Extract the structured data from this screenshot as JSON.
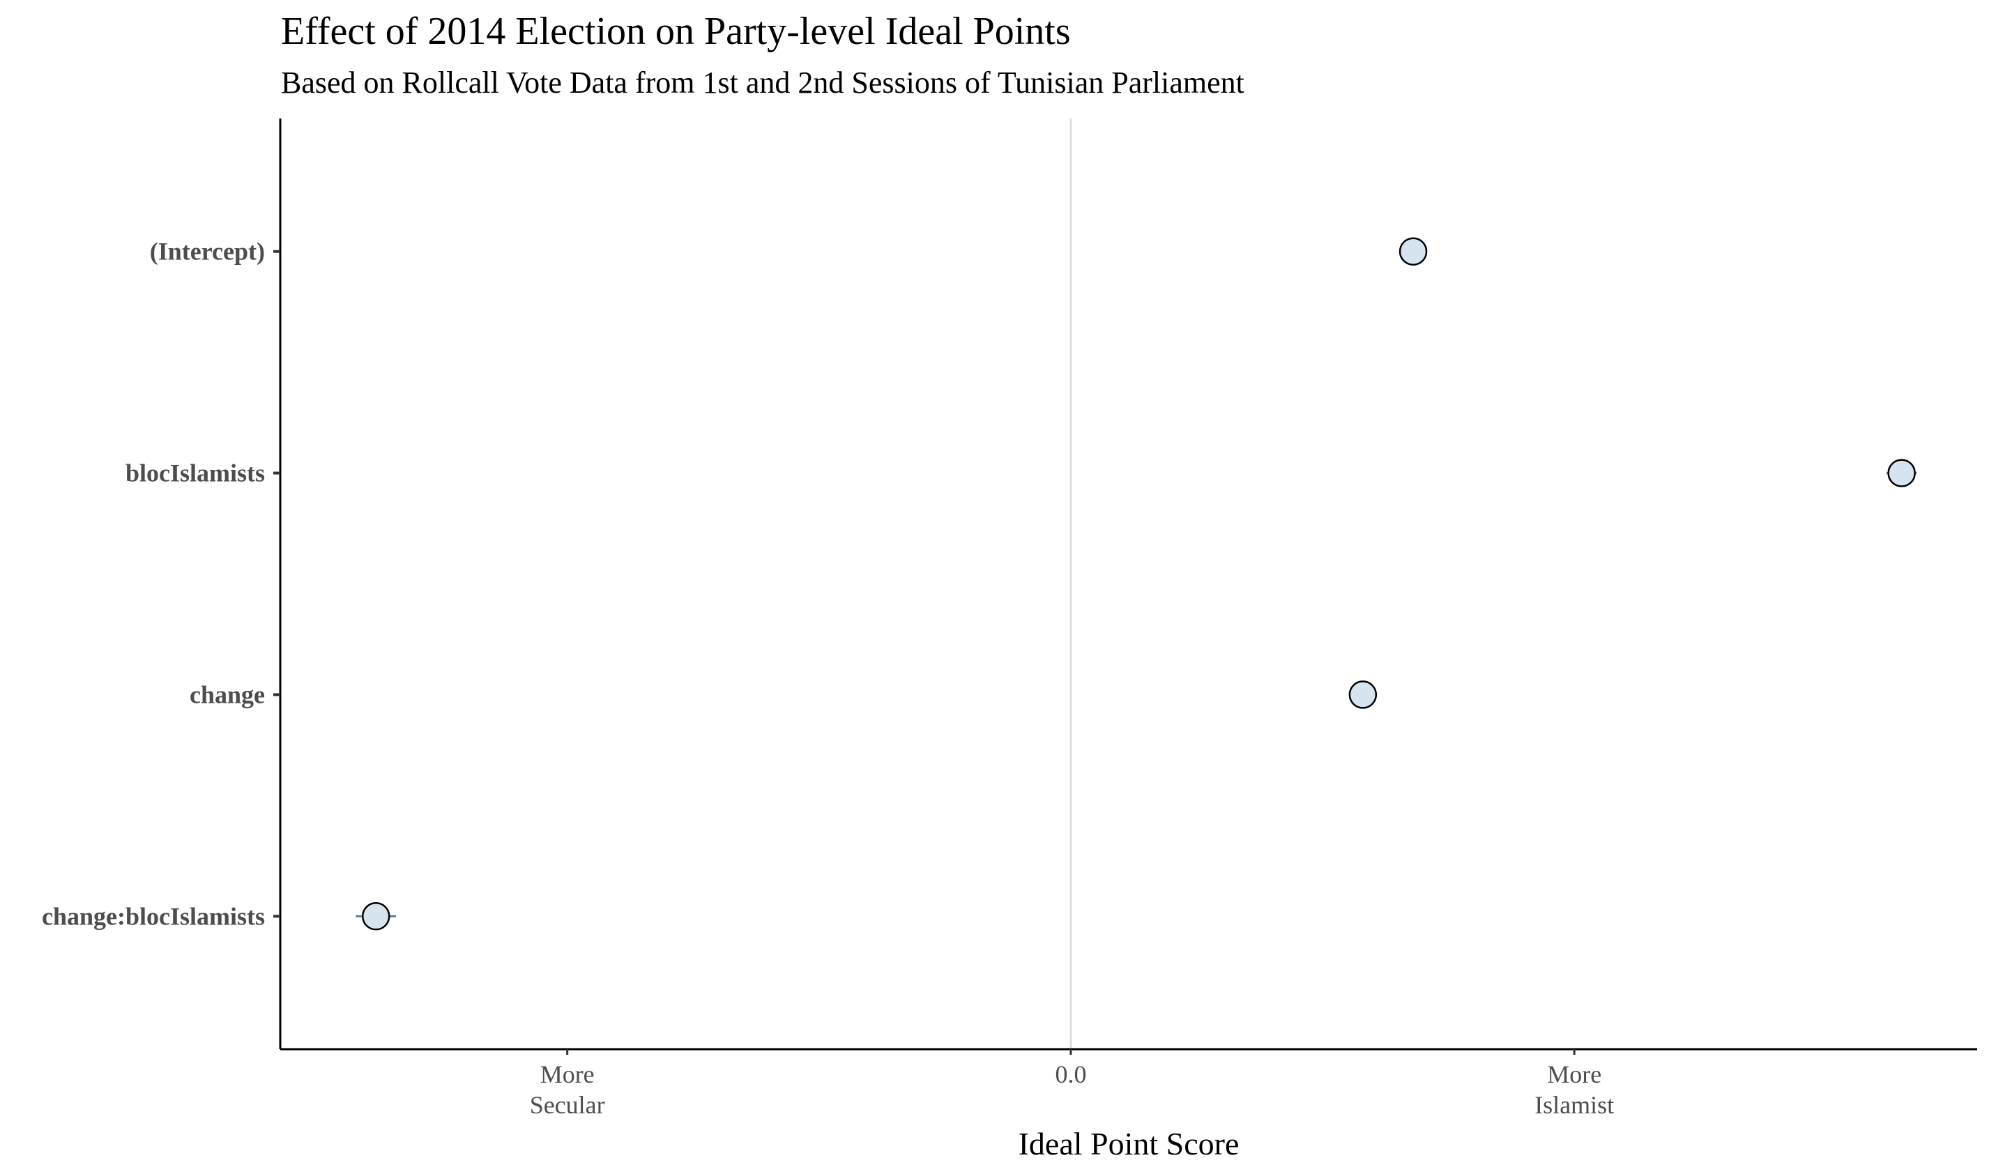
{
  "chart_data": {
    "type": "scatter",
    "title": "Effect of 2014 Election on Party-level Ideal Points",
    "subtitle": "Based on Rollcall Vote Data from 1st and 2nd Sessions of Tunisian Parliament",
    "xlabel": "Ideal Point Score",
    "ylabel": "",
    "xlim": [
      -1.57,
      1.8
    ],
    "x_ticks": [
      {
        "value": -1.0,
        "lines": [
          "More",
          "Secular"
        ]
      },
      {
        "value": 0.0,
        "lines": [
          "0.0"
        ]
      },
      {
        "value": 1.0,
        "lines": [
          "More",
          "Islamist"
        ]
      }
    ],
    "reference_line": 0.0,
    "categories": [
      "(Intercept)",
      "blocIslamists",
      "change",
      "change:blocIslamists"
    ],
    "points": [
      {
        "label": "(Intercept)",
        "x": 0.68,
        "ci": [
          0.66,
          0.7
        ]
      },
      {
        "label": "blocIslamists",
        "x": 1.65,
        "ci": [
          1.62,
          1.68
        ]
      },
      {
        "label": "change",
        "x": 0.58,
        "ci": [
          0.56,
          0.6
        ]
      },
      {
        "label": "change:blocIslamists",
        "x": -1.38,
        "ci": [
          -1.42,
          -1.34
        ]
      }
    ],
    "grid": false,
    "colors": {
      "point_fill": "#d6e4ef",
      "point_stroke": "#000000",
      "axis": "#000000",
      "reference_line": "#dcdcdc",
      "ci_line": "#5b7da0"
    }
  }
}
